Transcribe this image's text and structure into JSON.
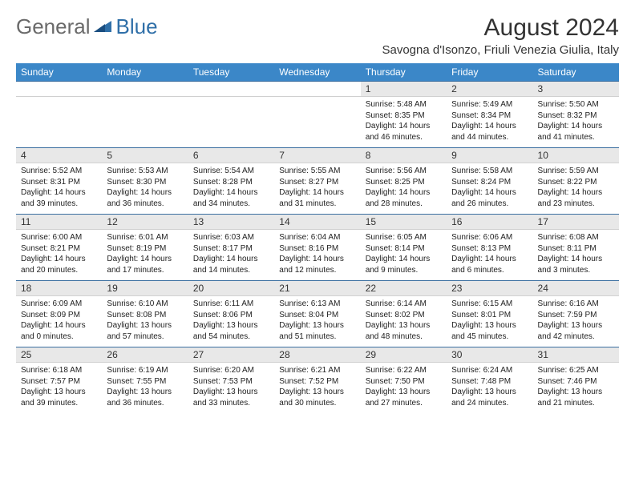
{
  "brand": {
    "part1": "General",
    "part2": "Blue"
  },
  "title": "August 2024",
  "subtitle": "Savogna d'Isonzo, Friuli Venezia Giulia, Italy",
  "colors": {
    "header_bg": "#3b87c8",
    "header_fg": "#ffffff",
    "daynum_bg": "#e8e8e8",
    "rule": "#3b6fa0",
    "text": "#222222"
  },
  "weekdays": [
    "Sunday",
    "Monday",
    "Tuesday",
    "Wednesday",
    "Thursday",
    "Friday",
    "Saturday"
  ],
  "weeks": [
    [
      null,
      null,
      null,
      null,
      {
        "n": "1",
        "sr": "5:48 AM",
        "ss": "8:35 PM",
        "dl": "14 hours and 46 minutes."
      },
      {
        "n": "2",
        "sr": "5:49 AM",
        "ss": "8:34 PM",
        "dl": "14 hours and 44 minutes."
      },
      {
        "n": "3",
        "sr": "5:50 AM",
        "ss": "8:32 PM",
        "dl": "14 hours and 41 minutes."
      }
    ],
    [
      {
        "n": "4",
        "sr": "5:52 AM",
        "ss": "8:31 PM",
        "dl": "14 hours and 39 minutes."
      },
      {
        "n": "5",
        "sr": "5:53 AM",
        "ss": "8:30 PM",
        "dl": "14 hours and 36 minutes."
      },
      {
        "n": "6",
        "sr": "5:54 AM",
        "ss": "8:28 PM",
        "dl": "14 hours and 34 minutes."
      },
      {
        "n": "7",
        "sr": "5:55 AM",
        "ss": "8:27 PM",
        "dl": "14 hours and 31 minutes."
      },
      {
        "n": "8",
        "sr": "5:56 AM",
        "ss": "8:25 PM",
        "dl": "14 hours and 28 minutes."
      },
      {
        "n": "9",
        "sr": "5:58 AM",
        "ss": "8:24 PM",
        "dl": "14 hours and 26 minutes."
      },
      {
        "n": "10",
        "sr": "5:59 AM",
        "ss": "8:22 PM",
        "dl": "14 hours and 23 minutes."
      }
    ],
    [
      {
        "n": "11",
        "sr": "6:00 AM",
        "ss": "8:21 PM",
        "dl": "14 hours and 20 minutes."
      },
      {
        "n": "12",
        "sr": "6:01 AM",
        "ss": "8:19 PM",
        "dl": "14 hours and 17 minutes."
      },
      {
        "n": "13",
        "sr": "6:03 AM",
        "ss": "8:17 PM",
        "dl": "14 hours and 14 minutes."
      },
      {
        "n": "14",
        "sr": "6:04 AM",
        "ss": "8:16 PM",
        "dl": "14 hours and 12 minutes."
      },
      {
        "n": "15",
        "sr": "6:05 AM",
        "ss": "8:14 PM",
        "dl": "14 hours and 9 minutes."
      },
      {
        "n": "16",
        "sr": "6:06 AM",
        "ss": "8:13 PM",
        "dl": "14 hours and 6 minutes."
      },
      {
        "n": "17",
        "sr": "6:08 AM",
        "ss": "8:11 PM",
        "dl": "14 hours and 3 minutes."
      }
    ],
    [
      {
        "n": "18",
        "sr": "6:09 AM",
        "ss": "8:09 PM",
        "dl": "14 hours and 0 minutes."
      },
      {
        "n": "19",
        "sr": "6:10 AM",
        "ss": "8:08 PM",
        "dl": "13 hours and 57 minutes."
      },
      {
        "n": "20",
        "sr": "6:11 AM",
        "ss": "8:06 PM",
        "dl": "13 hours and 54 minutes."
      },
      {
        "n": "21",
        "sr": "6:13 AM",
        "ss": "8:04 PM",
        "dl": "13 hours and 51 minutes."
      },
      {
        "n": "22",
        "sr": "6:14 AM",
        "ss": "8:02 PM",
        "dl": "13 hours and 48 minutes."
      },
      {
        "n": "23",
        "sr": "6:15 AM",
        "ss": "8:01 PM",
        "dl": "13 hours and 45 minutes."
      },
      {
        "n": "24",
        "sr": "6:16 AM",
        "ss": "7:59 PM",
        "dl": "13 hours and 42 minutes."
      }
    ],
    [
      {
        "n": "25",
        "sr": "6:18 AM",
        "ss": "7:57 PM",
        "dl": "13 hours and 39 minutes."
      },
      {
        "n": "26",
        "sr": "6:19 AM",
        "ss": "7:55 PM",
        "dl": "13 hours and 36 minutes."
      },
      {
        "n": "27",
        "sr": "6:20 AM",
        "ss": "7:53 PM",
        "dl": "13 hours and 33 minutes."
      },
      {
        "n": "28",
        "sr": "6:21 AM",
        "ss": "7:52 PM",
        "dl": "13 hours and 30 minutes."
      },
      {
        "n": "29",
        "sr": "6:22 AM",
        "ss": "7:50 PM",
        "dl": "13 hours and 27 minutes."
      },
      {
        "n": "30",
        "sr": "6:24 AM",
        "ss": "7:48 PM",
        "dl": "13 hours and 24 minutes."
      },
      {
        "n": "31",
        "sr": "6:25 AM",
        "ss": "7:46 PM",
        "dl": "13 hours and 21 minutes."
      }
    ]
  ],
  "labels": {
    "sunrise": "Sunrise:",
    "sunset": "Sunset:",
    "daylight": "Daylight:"
  }
}
